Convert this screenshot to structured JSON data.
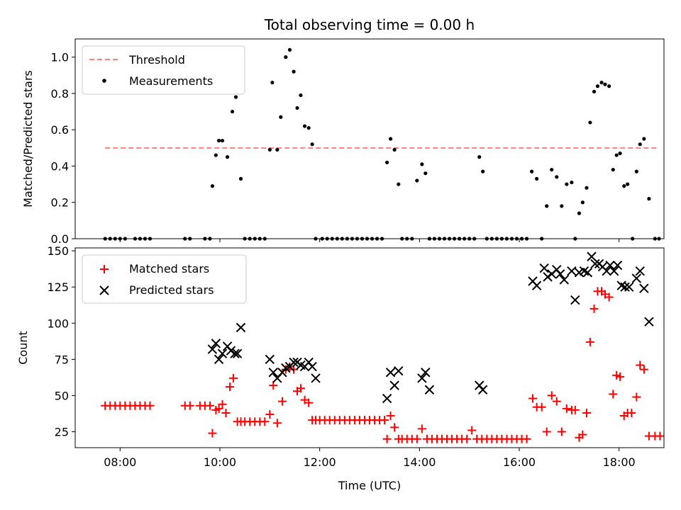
{
  "title": "Total observing time = 0.00 h",
  "chart_data": [
    {
      "type": "scatter",
      "panel": "top",
      "ylabel": "Matched/Predicted stars",
      "ylim": [
        0,
        1.1
      ],
      "yticks": [
        0.0,
        0.2,
        0.4,
        0.6,
        0.8,
        1.0
      ],
      "ytick_labels": [
        "0.0",
        "0.2",
        "0.4",
        "0.6",
        "0.8",
        "1.0"
      ],
      "xlim": [
        7.1,
        18.9
      ],
      "legend": {
        "placement": "top-left",
        "entries": [
          "Threshold",
          "Measurements"
        ]
      },
      "series": [
        {
          "name": "Threshold",
          "kind": "dashed-line",
          "color": "#ff7f7f",
          "x": [
            7.7,
            18.8
          ],
          "y": [
            0.5,
            0.5
          ]
        },
        {
          "name": "Measurements",
          "kind": "dots",
          "color": "#000000",
          "x": [
            7.7,
            7.8,
            7.9,
            8.0,
            8.1,
            8.3,
            8.4,
            8.5,
            8.6,
            9.3,
            9.4,
            9.7,
            9.8,
            9.85,
            9.92,
            9.98,
            10.05,
            10.15,
            10.25,
            10.32,
            10.42,
            10.5,
            10.6,
            10.7,
            10.8,
            10.9,
            11.0,
            11.05,
            11.15,
            11.22,
            11.32,
            11.4,
            11.48,
            11.55,
            11.62,
            11.7,
            11.78,
            11.85,
            11.92,
            12.05,
            12.15,
            12.25,
            12.35,
            12.45,
            12.55,
            12.65,
            12.75,
            12.85,
            12.95,
            13.05,
            13.15,
            13.25,
            13.35,
            13.42,
            13.5,
            13.58,
            13.65,
            13.75,
            13.85,
            13.95,
            14.05,
            14.12,
            14.2,
            14.3,
            14.4,
            14.5,
            14.6,
            14.7,
            14.8,
            14.9,
            15.0,
            15.1,
            15.2,
            15.27,
            15.35,
            15.45,
            15.55,
            15.65,
            15.75,
            15.85,
            15.95,
            16.05,
            16.15,
            16.25,
            16.35,
            16.45,
            16.55,
            16.65,
            16.75,
            16.85,
            16.95,
            17.05,
            17.12,
            17.2,
            17.27,
            17.35,
            17.42,
            17.5,
            17.57,
            17.65,
            17.72,
            17.8,
            17.88,
            17.95,
            18.02,
            18.1,
            18.17,
            18.27,
            18.35,
            18.42,
            18.5,
            18.6,
            18.72,
            18.8
          ],
          "y": [
            0.0,
            0.0,
            0.0,
            0.0,
            0.0,
            0.0,
            0.0,
            0.0,
            0.0,
            0.0,
            0.0,
            0.0,
            0.0,
            0.29,
            0.46,
            0.54,
            0.54,
            0.45,
            0.7,
            0.78,
            0.33,
            0.0,
            0.0,
            0.0,
            0.0,
            0.0,
            0.49,
            0.86,
            0.49,
            0.67,
            1.0,
            1.04,
            0.92,
            0.72,
            0.79,
            0.62,
            0.61,
            0.52,
            0.0,
            0.0,
            0.0,
            0.0,
            0.0,
            0.0,
            0.0,
            0.0,
            0.0,
            0.0,
            0.0,
            0.0,
            0.0,
            0.0,
            0.42,
            0.55,
            0.49,
            0.3,
            0.0,
            0.0,
            0.0,
            0.32,
            0.41,
            0.36,
            0.0,
            0.0,
            0.0,
            0.0,
            0.0,
            0.0,
            0.0,
            0.0,
            0.0,
            0.0,
            0.45,
            0.37,
            0.0,
            0.0,
            0.0,
            0.0,
            0.0,
            0.0,
            0.0,
            0.0,
            0.0,
            0.37,
            0.33,
            0.0,
            0.18,
            0.38,
            0.34,
            0.18,
            0.3,
            0.31,
            0.0,
            0.14,
            0.2,
            0.28,
            0.64,
            0.81,
            0.84,
            0.86,
            0.85,
            0.84,
            0.38,
            0.46,
            0.47,
            0.29,
            0.3,
            0.0,
            0.37,
            0.52,
            0.55,
            0.22,
            0.0,
            0.0
          ]
        }
      ]
    },
    {
      "type": "scatter",
      "panel": "bottom",
      "ylabel": "Count",
      "xlabel": "Time (UTC)",
      "ylim": [
        14,
        152
      ],
      "yticks": [
        25,
        50,
        75,
        100,
        125,
        150
      ],
      "ytick_labels": [
        "25",
        "50",
        "75",
        "100",
        "125",
        "150"
      ],
      "xlim": [
        7.1,
        18.9
      ],
      "xticks": [
        8,
        10,
        12,
        14,
        16,
        18
      ],
      "xtick_labels": [
        "08:00",
        "10:00",
        "12:00",
        "14:00",
        "16:00",
        "18:00"
      ],
      "legend": {
        "placement": "top-left",
        "entries": [
          "Matched stars",
          "Predicted stars"
        ]
      },
      "series": [
        {
          "name": "Matched stars",
          "kind": "plus",
          "color": "#ff0000",
          "x": [
            7.7,
            7.8,
            7.9,
            8.0,
            8.1,
            8.2,
            8.3,
            8.4,
            8.5,
            8.6,
            9.3,
            9.4,
            9.6,
            9.7,
            9.8,
            9.85,
            9.92,
            9.98,
            10.05,
            10.12,
            10.2,
            10.27,
            10.35,
            10.42,
            10.5,
            10.6,
            10.7,
            10.8,
            10.9,
            11.0,
            11.07,
            11.15,
            11.25,
            11.32,
            11.4,
            11.48,
            11.55,
            11.62,
            11.7,
            11.78,
            11.85,
            11.92,
            12.0,
            12.1,
            12.2,
            12.3,
            12.4,
            12.5,
            12.6,
            12.7,
            12.8,
            12.9,
            13.0,
            13.1,
            13.2,
            13.3,
            13.35,
            13.42,
            13.5,
            13.58,
            13.65,
            13.75,
            13.85,
            13.95,
            14.05,
            14.15,
            14.25,
            14.35,
            14.45,
            14.55,
            14.65,
            14.75,
            14.85,
            14.95,
            15.05,
            15.15,
            15.25,
            15.35,
            15.45,
            15.55,
            15.65,
            15.75,
            15.85,
            15.95,
            16.05,
            16.15,
            16.27,
            16.35,
            16.45,
            16.55,
            16.65,
            16.75,
            16.85,
            16.95,
            17.05,
            17.12,
            17.2,
            17.27,
            17.35,
            17.42,
            17.5,
            17.57,
            17.65,
            17.72,
            17.8,
            17.88,
            17.95,
            18.02,
            18.1,
            18.17,
            18.25,
            18.35,
            18.42,
            18.5,
            18.6,
            18.72,
            18.82
          ],
          "y": [
            43,
            43,
            43,
            43,
            43,
            43,
            43,
            43,
            43,
            43,
            43,
            43,
            43,
            43,
            43,
            24,
            40,
            41,
            44,
            38,
            56,
            62,
            32,
            32,
            32,
            32,
            32,
            32,
            32,
            37,
            57,
            31,
            46,
            68,
            70,
            68,
            53,
            55,
            47,
            45,
            33,
            33,
            33,
            33,
            33,
            33,
            33,
            33,
            33,
            33,
            33,
            33,
            33,
            33,
            33,
            33,
            20,
            36,
            28,
            20,
            20,
            20,
            20,
            20,
            27,
            20,
            20,
            20,
            20,
            20,
            20,
            20,
            20,
            20,
            26,
            20,
            20,
            20,
            20,
            20,
            20,
            20,
            20,
            20,
            20,
            20,
            48,
            42,
            42,
            25,
            50,
            46,
            25,
            41,
            40,
            40,
            21,
            23,
            38,
            87,
            110,
            122,
            122,
            120,
            118,
            51,
            64,
            63,
            36,
            38,
            38,
            49,
            71,
            68,
            22,
            22,
            22
          ]
        },
        {
          "name": "Predicted stars",
          "kind": "x",
          "color": "#000000",
          "x": [
            9.85,
            9.92,
            9.98,
            10.05,
            10.15,
            10.22,
            10.3,
            10.35,
            10.42,
            11.0,
            11.07,
            11.15,
            11.25,
            11.32,
            11.4,
            11.48,
            11.55,
            11.62,
            11.7,
            11.78,
            11.85,
            11.92,
            13.35,
            13.42,
            13.5,
            13.58,
            14.05,
            14.12,
            14.2,
            15.2,
            15.27,
            16.27,
            16.35,
            16.5,
            16.57,
            16.65,
            16.75,
            16.82,
            16.9,
            17.05,
            17.12,
            17.2,
            17.3,
            17.37,
            17.45,
            17.52,
            17.6,
            17.67,
            17.75,
            17.82,
            17.9,
            17.97,
            18.05,
            18.12,
            18.2,
            18.35,
            18.42,
            18.5,
            18.6
          ],
          "y": [
            82,
            86,
            75,
            79,
            84,
            81,
            79,
            79,
            97,
            75,
            66,
            62,
            66,
            69,
            70,
            73,
            73,
            71,
            70,
            73,
            70,
            62,
            48,
            66,
            57,
            67,
            62,
            66,
            54,
            57,
            54,
            129,
            126,
            138,
            132,
            134,
            137,
            134,
            130,
            136,
            116,
            135,
            136,
            135,
            146,
            141,
            141,
            139,
            136,
            140,
            136,
            140,
            126,
            125,
            125,
            131,
            136,
            124,
            101
          ]
        }
      ]
    }
  ]
}
